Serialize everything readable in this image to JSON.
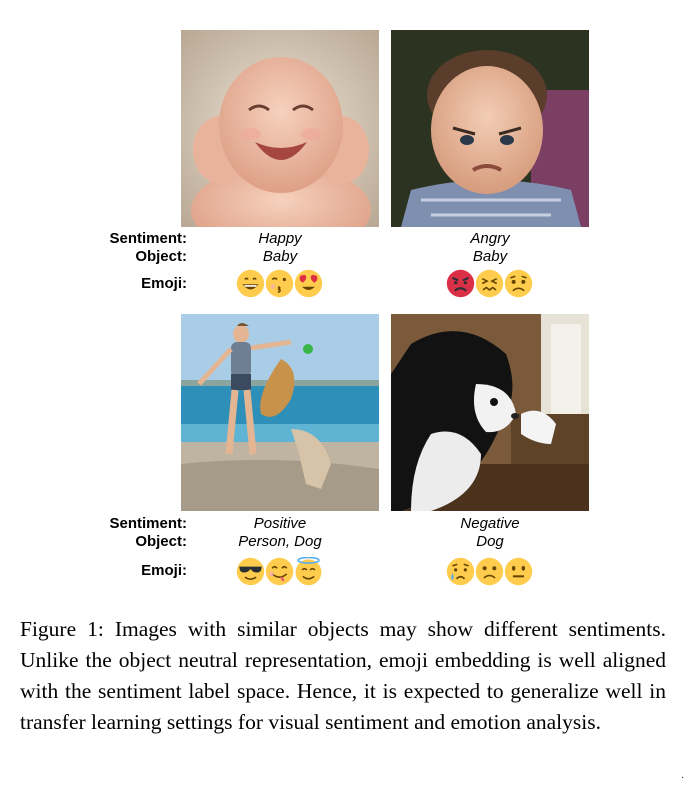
{
  "labels": {
    "sentiment": "Sentiment:",
    "object": "Object:",
    "emoji": "Emoji:"
  },
  "panels": [
    {
      "sentiment": "Happy",
      "object": "Baby",
      "emojis": [
        "grinning-face-icon",
        "kissing-face-icon",
        "heart-eyes-face-icon"
      ]
    },
    {
      "sentiment": "Angry",
      "object": "Baby",
      "emojis": [
        "pouting-face-icon",
        "confounded-face-icon",
        "worried-face-icon"
      ]
    },
    {
      "sentiment": "Positive",
      "object": "Person, Dog",
      "emojis": [
        "sunglasses-face-icon",
        "savoring-face-icon",
        "halo-face-icon"
      ]
    },
    {
      "sentiment": "Negative",
      "object": "Dog",
      "emojis": [
        "crying-face-icon",
        "frowning-face-icon",
        "neutral-face-icon"
      ]
    }
  ],
  "caption": {
    "figure_label": "Figure 1:",
    "text": "Images with similar objects may show different sentiments. Unlike the object neutral representation, emoji embedding is well aligned with the sentiment label space. Hence, it is expected to generalize well in transfer learning settings for visual sentiment and emotion analysis."
  },
  "corner_mark": ".",
  "colors": {
    "emoji_yellow": "#FFCC4D",
    "emoji_red": "#DA2F47",
    "heart": "#DD2E44",
    "sky": "#9ec4e0",
    "sea": "#2e8fb8"
  }
}
